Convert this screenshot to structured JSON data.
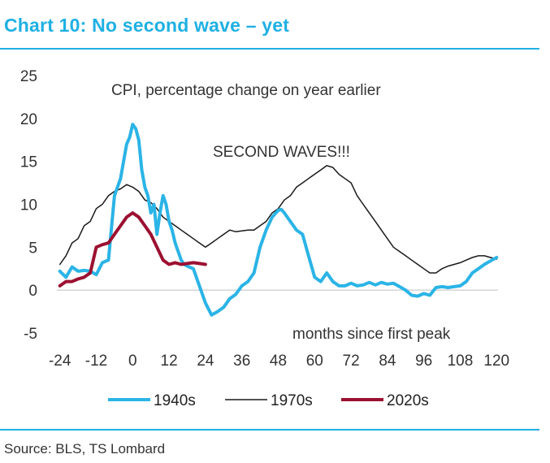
{
  "header": {
    "title": "Chart 10: No second wave – yet"
  },
  "footer": {
    "source": "Source: BLS, TS Lombard"
  },
  "colors": {
    "accent": "#1fb0e3",
    "s1940": "#2bb4e6",
    "s1970": "#1a1a1a",
    "s2020": "#9b1131"
  },
  "chart_data": {
    "type": "line",
    "title": "Chart 10: No second wave – yet",
    "ylabel": "CPI, percentage change on year earlier",
    "xlabel": "months since first peak",
    "annotations": [
      "CPI, percentage change on year earlier",
      "SECOND WAVES!!!",
      "months since first peak"
    ],
    "xlim": [
      -25,
      121
    ],
    "ylim": [
      -5,
      25
    ],
    "xticks": [
      -24,
      -12,
      0,
      12,
      24,
      36,
      48,
      60,
      72,
      84,
      96,
      108,
      120
    ],
    "xtick_labels": [
      "-24",
      "-12",
      "0",
      "12",
      "24",
      "36",
      "48",
      "60",
      "72",
      "84",
      "96",
      "108",
      "120"
    ],
    "yticks": [
      -5,
      0,
      5,
      10,
      15,
      20,
      25
    ],
    "ytick_labels": [
      "-5",
      "0",
      "5",
      "10",
      "15",
      "20",
      "25"
    ],
    "legend_position": "bottom",
    "series": [
      {
        "name": "1940s",
        "color": "#2bb4e6",
        "width": 4,
        "x": [
          -24,
          -22,
          -20,
          -18,
          -16,
          -14,
          -12,
          -10,
          -8,
          -6,
          -4,
          -3,
          -2,
          -1,
          0,
          1,
          2,
          3,
          4,
          5,
          6,
          7,
          8,
          9,
          10,
          11,
          12,
          13,
          14,
          15,
          16,
          17,
          18,
          20,
          22,
          24,
          26,
          28,
          30,
          32,
          34,
          36,
          38,
          40,
          42,
          44,
          46,
          48,
          49,
          50,
          52,
          54,
          56,
          58,
          60,
          62,
          64,
          66,
          68,
          70,
          72,
          74,
          76,
          78,
          80,
          82,
          84,
          86,
          88,
          90,
          92,
          94,
          96,
          98,
          100,
          102,
          104,
          106,
          108,
          110,
          112,
          114,
          116,
          118,
          120
        ],
        "values": [
          2.2,
          1.5,
          2.7,
          2.2,
          2.3,
          2.2,
          1.8,
          3.2,
          3.5,
          11,
          13,
          15,
          17,
          17.8,
          19.3,
          18.8,
          17.5,
          14,
          12,
          11,
          9,
          10,
          6.5,
          9,
          11,
          10,
          8,
          7,
          5.5,
          4.5,
          3.5,
          3,
          2.8,
          2.5,
          0.5,
          -1.5,
          -2.9,
          -2.5,
          -2,
          -1,
          -0.5,
          0.5,
          1,
          2,
          5,
          7,
          8.5,
          9.3,
          9.4,
          9,
          8,
          7,
          6.5,
          4,
          1.5,
          1,
          2,
          1,
          0.5,
          0.5,
          0.8,
          0.5,
          0.6,
          0.9,
          0.6,
          0.9,
          0.7,
          0.8,
          0.4,
          0,
          -0.6,
          -0.7,
          -0.4,
          -0.6,
          0.3,
          0.4,
          0.3,
          0.4,
          0.5,
          1,
          2,
          2.5,
          3,
          3.4,
          3.8
        ]
      },
      {
        "name": "1970s",
        "color": "#1a1a1a",
        "width": 1.5,
        "x": [
          -24,
          -22,
          -20,
          -18,
          -16,
          -14,
          -12,
          -10,
          -8,
          -6,
          -4,
          -2,
          0,
          2,
          4,
          6,
          8,
          10,
          12,
          14,
          16,
          18,
          20,
          22,
          24,
          26,
          28,
          30,
          32,
          34,
          36,
          38,
          40,
          42,
          44,
          46,
          48,
          50,
          52,
          54,
          56,
          58,
          60,
          62,
          64,
          66,
          68,
          70,
          72,
          74,
          76,
          78,
          80,
          82,
          84,
          86,
          88,
          90,
          92,
          94,
          96,
          98,
          100,
          102,
          104,
          106,
          108,
          110,
          112,
          114,
          116,
          118,
          120
        ],
        "values": [
          3,
          4,
          5.5,
          6,
          7.5,
          8,
          9.5,
          10,
          11,
          11.5,
          11.8,
          12.3,
          12,
          11.5,
          10.5,
          10.2,
          9.5,
          8.5,
          8,
          7.5,
          7,
          6.5,
          6,
          5.5,
          5,
          5.5,
          6,
          6.5,
          7,
          6.8,
          6.9,
          7,
          7,
          7.5,
          8,
          9,
          9.5,
          10.5,
          11,
          12,
          12.5,
          13,
          13.5,
          14,
          14.5,
          14.3,
          13.5,
          13,
          12.5,
          11,
          10,
          9,
          8,
          7,
          6,
          5,
          4.5,
          4,
          3.5,
          3,
          2.5,
          2,
          2,
          2.5,
          2.8,
          3,
          3.2,
          3.5,
          3.8,
          4,
          4,
          3.8,
          3.6
        ]
      },
      {
        "name": "2020s",
        "color": "#9b1131",
        "width": 4,
        "x": [
          -24,
          -22,
          -20,
          -18,
          -16,
          -14,
          -12,
          -10,
          -8,
          -6,
          -4,
          -2,
          0,
          2,
          4,
          6,
          8,
          10,
          12,
          14,
          16,
          18,
          20,
          22,
          24
        ],
        "values": [
          0.5,
          1,
          1,
          1.3,
          1.5,
          2,
          5,
          5.3,
          5.5,
          6.5,
          7.5,
          8.5,
          9,
          8.5,
          7.5,
          6.5,
          5,
          3.5,
          3,
          3.2,
          3,
          3.1,
          3.2,
          3.1,
          3
        ]
      }
    ]
  }
}
